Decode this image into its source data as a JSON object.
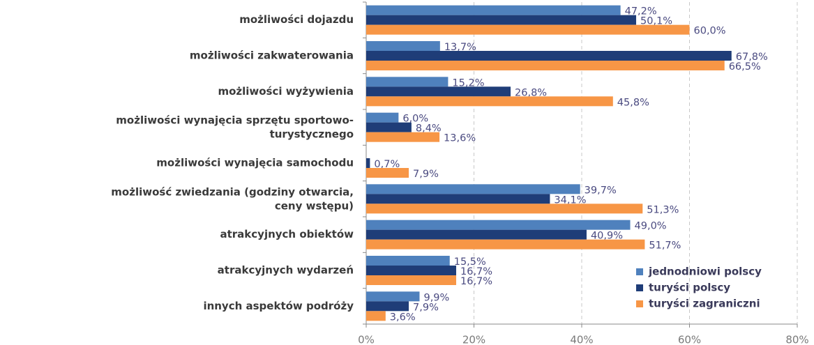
{
  "chart_data": {
    "type": "bar",
    "orientation": "horizontal",
    "categories": [
      "możliwości dojazdu",
      "możliwości zakwaterowania",
      "możliwości wyżywienia",
      "możliwości wynajęcia sprzętu sportowo-\nturystycznego",
      "możliwości wynajęcia samochodu",
      "możliwość zwiedzania (godziny otwarcia,\nceny wstępu)",
      "atrakcyjnych obiektów",
      "atrakcyjnych wydarzeń",
      "innych aspektów podróży"
    ],
    "series": [
      {
        "name": "jednodniowi polscy",
        "color": "#4f81bd",
        "values": [
          47.2,
          13.7,
          15.2,
          6.0,
          null,
          39.7,
          49.0,
          15.5,
          9.9
        ],
        "value_labels": [
          "47,2%",
          "13,7%",
          "15,2%",
          "6,0%",
          null,
          "39,7%",
          "49,0%",
          "15,5%",
          "9,9%"
        ]
      },
      {
        "name": "turyści polscy",
        "color": "#1f3d78",
        "values": [
          50.1,
          67.8,
          26.8,
          8.4,
          0.7,
          34.1,
          40.9,
          16.7,
          7.9
        ],
        "value_labels": [
          "50,1%",
          "67,8%",
          "26,8%",
          "8,4%",
          "0,7%",
          "34,1%",
          "40,9%",
          "16,7%",
          "7,9%"
        ]
      },
      {
        "name": "turyści zagraniczni",
        "color": "#f79646",
        "values": [
          60.0,
          66.5,
          45.8,
          13.6,
          7.9,
          51.3,
          51.7,
          16.7,
          3.6
        ],
        "value_labels": [
          "60,0%",
          "66,5%",
          "45,8%",
          "13,6%",
          "7,9%",
          "51,3%",
          "51,7%",
          "16,7%",
          "3,6%"
        ]
      }
    ],
    "xlim": [
      0,
      80
    ],
    "xticks": [
      {
        "value": 0,
        "label": "0%"
      },
      {
        "value": 20,
        "label": "20%"
      },
      {
        "value": 40,
        "label": "40%"
      },
      {
        "value": 60,
        "label": "60%"
      },
      {
        "value": 80,
        "label": "80%"
      }
    ],
    "grid": true,
    "legend": "lower right"
  }
}
